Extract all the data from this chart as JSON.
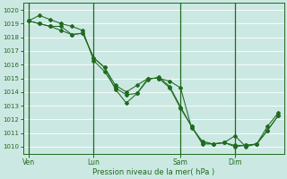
{
  "bg_color": "#cce8e3",
  "grid_color": "#ffffff",
  "line_color": "#1f6b1f",
  "xlabel": "Pression niveau de la mer( hPa )",
  "ylim": [
    1009.5,
    1020.5
  ],
  "yticks": [
    1010,
    1011,
    1012,
    1013,
    1014,
    1015,
    1016,
    1017,
    1018,
    1019,
    1020
  ],
  "xtick_labels": [
    "Ven",
    "Lun",
    "Sam",
    "Dim"
  ],
  "series1": [
    1019.2,
    1019.6,
    1019.3,
    1019.0,
    1018.8,
    1018.5,
    1016.3,
    1015.5,
    1014.3,
    1013.8,
    1013.9,
    1014.9,
    1015.1,
    1014.4,
    1012.9,
    1011.5,
    1010.3,
    1010.2,
    1010.3,
    1010.8,
    1010.0,
    1010.2,
    1011.5,
    1012.5
  ],
  "series2": [
    1019.2,
    1019.0,
    1018.8,
    1018.8,
    1018.2,
    1018.3,
    1016.5,
    1015.8,
    1014.5,
    1014.0,
    1014.5,
    1015.0,
    1015.0,
    1014.8,
    1014.3,
    1011.4,
    1010.4,
    1010.2,
    1010.3,
    1010.1,
    1010.1,
    1010.2,
    1011.2,
    1012.3
  ],
  "series3": [
    1019.2,
    1019.0,
    1018.8,
    1018.5,
    1018.2,
    1018.3,
    1016.5,
    1015.8,
    1014.2,
    1013.2,
    1013.9,
    1015.0,
    1015.0,
    1014.3,
    1012.8,
    1011.5,
    1010.2,
    1010.2,
    1010.3,
    1010.0,
    1010.1,
    1010.2,
    1011.2,
    1012.3
  ],
  "n_points": 24,
  "ven_i": 0,
  "lun_i": 6,
  "sam_i": 14,
  "dim_i": 19
}
